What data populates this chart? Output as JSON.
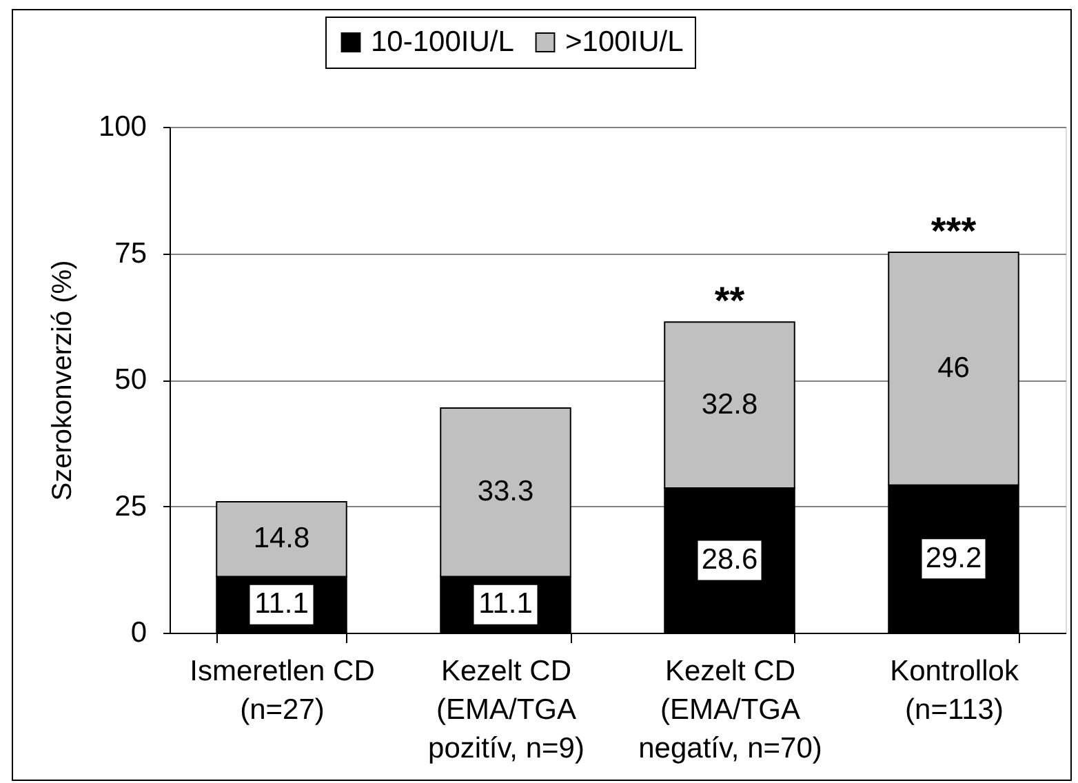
{
  "chart_data": {
    "type": "bar",
    "stacked": true,
    "categories": [
      "Ismeretlen CD\n(n=27)",
      "Kezelt CD\n(EMA/TGA\npozitív, n=9)",
      "Kezelt CD\n(EMA/TGA\nnegatív, n=70)",
      "Kontrollok\n(n=113)"
    ],
    "series": [
      {
        "name": "10-100IU/L",
        "color": "#000000",
        "values": [
          11.1,
          11.1,
          28.6,
          29.2
        ]
      },
      {
        "name": ">100IU/L",
        "color": "#c0c0c0",
        "values": [
          14.8,
          33.3,
          32.8,
          46
        ]
      }
    ],
    "ylabel": "Szerokonverzió (%)",
    "ylim": [
      0,
      100
    ],
    "yticks": [
      0,
      25,
      50,
      75,
      100
    ],
    "grid": "y",
    "legend": "top",
    "data_labels": true,
    "annotations": [
      {
        "text": "**",
        "x": "Kezelt CD\n(EMA/TGA\nnegatív, n=70)",
        "y": 61.4
      },
      {
        "text": "***",
        "x": "Kontrollok\n(n=113)",
        "y": 75.2
      }
    ]
  }
}
